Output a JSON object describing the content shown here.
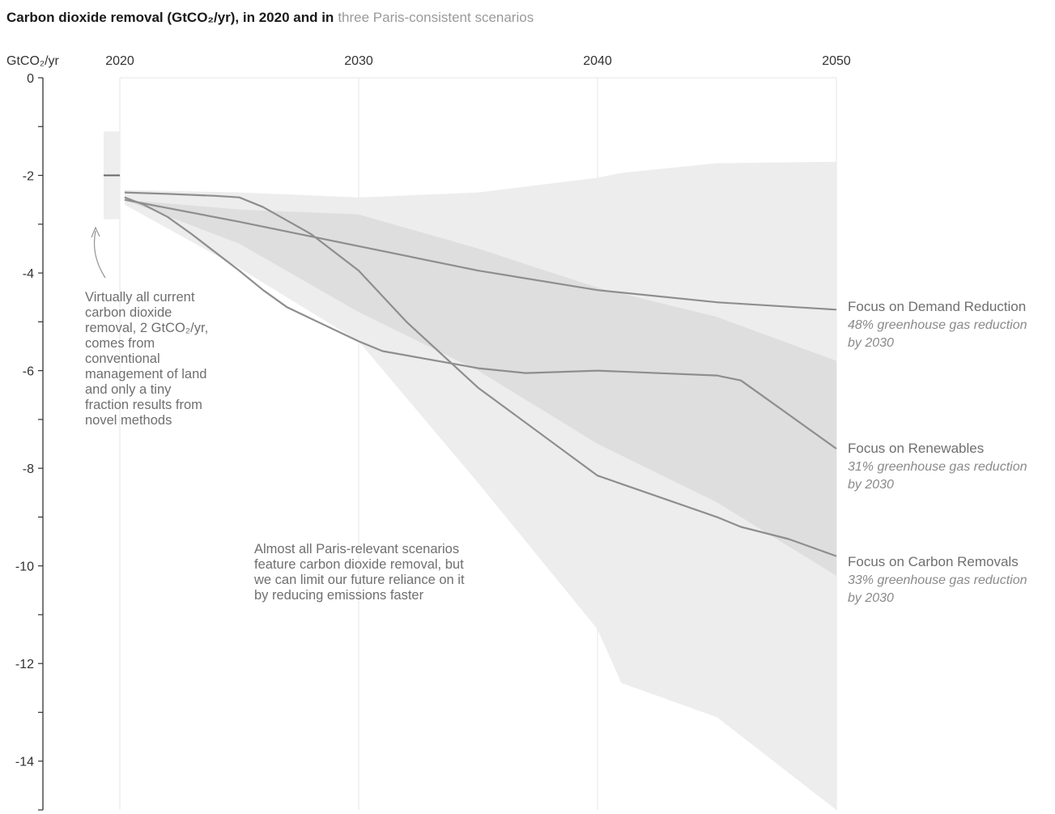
{
  "chart_data": {
    "type": "line",
    "title": "Carbon dioxide removal (GtCO₂/yr), in 2020 and in",
    "title_highlight": "three Paris-consistent scenarios",
    "ylabel": "GtCO₂/yr",
    "xlim": [
      2020,
      2050
    ],
    "ylim": [
      -15,
      0
    ],
    "x_ticks": [
      2020,
      2030,
      2040,
      2050
    ],
    "y_ticks": [
      0,
      -2,
      -4,
      -6,
      -8,
      -10,
      -12,
      -14
    ],
    "grid": "vertical",
    "current_2020": {
      "value": -2,
      "range": [
        -1.1,
        -2.9
      ]
    },
    "outer_band": {
      "x": [
        2020.2,
        2025,
        2030,
        2035,
        2040,
        2041,
        2045,
        2050
      ],
      "upper": [
        -2.3,
        -2.35,
        -2.45,
        -2.35,
        -2.05,
        -1.95,
        -1.75,
        -1.72
      ],
      "lower": [
        -2.6,
        -3.9,
        -5.4,
        -8.3,
        -11.3,
        -12.4,
        -13.1,
        -15.0
      ]
    },
    "inner_band": {
      "x": [
        2020.2,
        2025,
        2030,
        2035,
        2040,
        2045,
        2050
      ],
      "upper": [
        -2.5,
        -2.7,
        -2.8,
        -3.5,
        -4.3,
        -4.9,
        -5.8
      ],
      "lower": [
        -2.5,
        -3.4,
        -4.8,
        -6.0,
        -7.5,
        -8.7,
        -10.2
      ]
    },
    "series": [
      {
        "name": "Focus on Demand Reduction",
        "note": "48% greenhouse gas reduction by 2030",
        "x": [
          2020.2,
          2025,
          2030,
          2035,
          2040,
          2045,
          2050
        ],
        "values": [
          -2.5,
          -2.95,
          -3.45,
          -3.95,
          -4.35,
          -4.6,
          -4.75
        ]
      },
      {
        "name": "Focus on Renewables",
        "note": "31% greenhouse gas reduction by 2030",
        "x": [
          2020.2,
          2022,
          2024,
          2025,
          2026,
          2028,
          2030,
          2032,
          2035,
          2040,
          2045,
          2046,
          2048,
          2050
        ],
        "values": [
          -2.35,
          -2.38,
          -2.42,
          -2.45,
          -2.65,
          -3.2,
          -3.95,
          -5.0,
          -6.35,
          -8.15,
          -9.0,
          -9.2,
          -9.45,
          -9.8
        ]
      },
      {
        "name": "Focus on Carbon Removals",
        "note": "33% greenhouse gas reduction by 2030",
        "x": [
          2020.2,
          2021,
          2022,
          2023,
          2025,
          2026,
          2027,
          2030,
          2031,
          2035,
          2037,
          2040,
          2045,
          2046,
          2047,
          2050
        ],
        "values": [
          -2.45,
          -2.6,
          -2.85,
          -3.2,
          -3.95,
          -4.35,
          -4.7,
          -5.4,
          -5.6,
          -5.95,
          -6.05,
          -6.0,
          -6.1,
          -6.2,
          -6.55,
          -7.6
        ]
      }
    ],
    "annotations": [
      {
        "lines": [
          "Virtually all current",
          "carbon dioxide",
          "removal, 2 GtCO₂/yr,",
          "comes from",
          "conventional",
          "management of land",
          "and only a tiny",
          "fraction results from",
          "novel methods"
        ]
      },
      {
        "lines": [
          "Almost all Paris-relevant scenarios",
          "feature carbon dioxide removal, but",
          "we can limit our future reliance on it",
          "by reducing emissions faster"
        ]
      }
    ],
    "colors": {
      "outer_band": "#ededed",
      "inner_band": "#dedede",
      "current_band": "#eeeeee",
      "line": "#8e8e8e",
      "grid": "#e6e6e6",
      "axis": "#333333"
    }
  }
}
